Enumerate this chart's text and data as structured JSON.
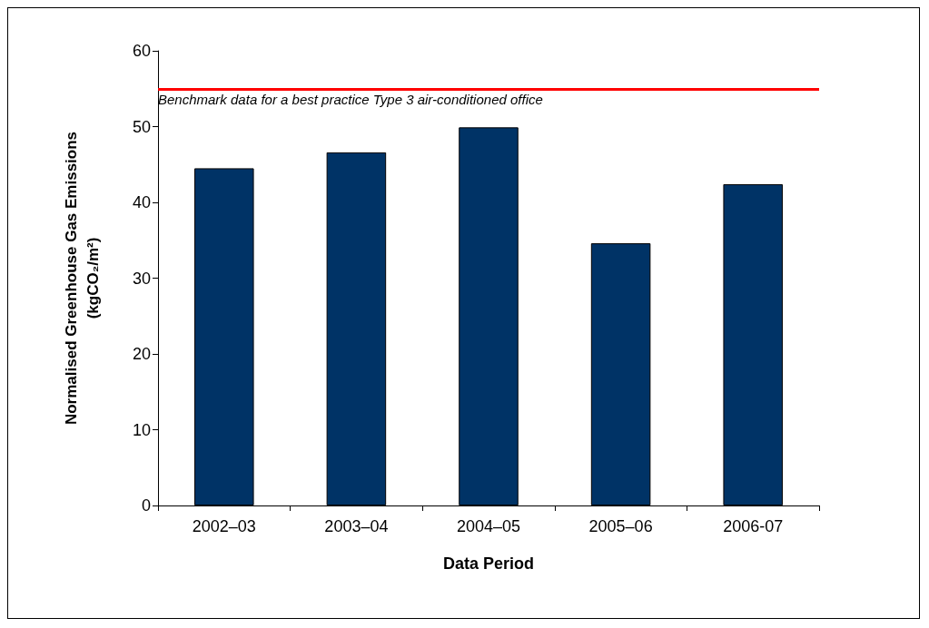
{
  "chart_data": {
    "type": "bar",
    "xlabel": "Data Period",
    "ylabel": "Normalised Greenhouse Gas Emissions\n(kgCO₂/m²)",
    "categories": [
      "2002–03",
      "2003–04",
      "2004–05",
      "2005–06",
      "2006-07"
    ],
    "values": [
      44.5,
      46.6,
      49.9,
      34.6,
      42.4
    ],
    "color": "#003366",
    "ylim": [
      0,
      60
    ],
    "yticks": [
      0,
      10,
      20,
      30,
      40,
      50,
      60
    ],
    "grid": false,
    "ref_lines": [
      {
        "axis": "y",
        "value": 55,
        "label": "Benchmark data for a best practice Type 3 air-conditioned office",
        "color": "#ff0000",
        "line_style": "solid"
      }
    ]
  }
}
